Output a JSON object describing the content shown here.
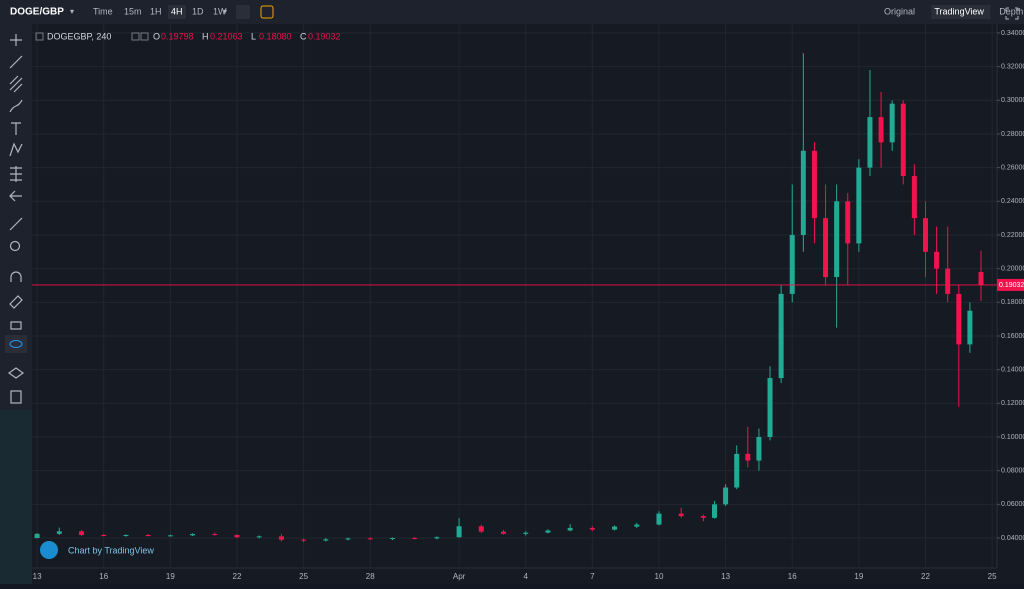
{
  "header": {
    "symbol": "DOGE/GBP",
    "intervals": [
      "Time",
      "15m",
      "1H",
      "4H",
      "1D",
      "1W"
    ],
    "active_interval": "4H",
    "views": [
      "Original",
      "TradingView",
      "Depth"
    ],
    "active_view": "TradingView"
  },
  "legend": {
    "symbol": "DOGEGBP, 240",
    "o_label": "O",
    "o": "0.19798",
    "h_label": "H",
    "h": "0.21063",
    "l_label": "L",
    "l": "0.18080",
    "c_label": "C",
    "c": "0.19032"
  },
  "watermark": "Chart by TradingView",
  "chart_data": {
    "type": "candlestick",
    "up_color": "#22ab94",
    "down_color": "#f0134d",
    "grid": true,
    "xlim": [
      -0.23,
      43.22
    ],
    "xticks": [
      {
        "value": 0,
        "label": "13"
      },
      {
        "value": 3,
        "label": "16"
      },
      {
        "value": 6,
        "label": "19"
      },
      {
        "value": 9,
        "label": "22"
      },
      {
        "value": 12,
        "label": "25"
      },
      {
        "value": 15,
        "label": "28"
      },
      {
        "value": 19,
        "label": "Apr"
      },
      {
        "value": 22,
        "label": "4"
      },
      {
        "value": 25,
        "label": "7"
      },
      {
        "value": 28,
        "label": "10"
      },
      {
        "value": 31,
        "label": "13"
      },
      {
        "value": 34,
        "label": "16"
      },
      {
        "value": 37,
        "label": "19"
      },
      {
        "value": 40,
        "label": "22"
      },
      {
        "value": 43,
        "label": "25"
      }
    ],
    "ylim": [
      0.0222,
      0.3453
    ],
    "yticks": [
      {
        "value": 0.04,
        "label": "0.04000"
      },
      {
        "value": 0.06,
        "label": "0.06000"
      },
      {
        "value": 0.08,
        "label": "0.08000"
      },
      {
        "value": 0.1,
        "label": "0.10000"
      },
      {
        "value": 0.12,
        "label": "0.12000"
      },
      {
        "value": 0.14,
        "label": "0.14000"
      },
      {
        "value": 0.16,
        "label": "0.16000"
      },
      {
        "value": 0.18,
        "label": "0.18000"
      },
      {
        "value": 0.2,
        "label": "0.20000"
      },
      {
        "value": 0.22,
        "label": "0.22000"
      },
      {
        "value": 0.24,
        "label": "0.24000"
      },
      {
        "value": 0.26,
        "label": "0.26000"
      },
      {
        "value": 0.28,
        "label": "0.28000"
      },
      {
        "value": 0.3,
        "label": "0.30000"
      },
      {
        "value": 0.32,
        "label": "0.32000"
      },
      {
        "value": 0.34,
        "label": "0.34000"
      }
    ],
    "last_price": {
      "value": 0.19032,
      "label": "0.19032"
    },
    "x": [
      0,
      1,
      2,
      3,
      4,
      5,
      6,
      7,
      8,
      9,
      10,
      11,
      12,
      13,
      14,
      15,
      16,
      17,
      18,
      19,
      20,
      21,
      22,
      23,
      24,
      25,
      26,
      27,
      28,
      29,
      30,
      30.5,
      31,
      31.5,
      32,
      32.5,
      33,
      33.5,
      34,
      34.5,
      35,
      35.5,
      36,
      36.5,
      37,
      37.5,
      38,
      38.5,
      39,
      39.5,
      40,
      40.5,
      41,
      41.5,
      42,
      42.5
    ],
    "open": [
      0.04,
      0.0425,
      0.044,
      0.0418,
      0.0415,
      0.0418,
      0.0414,
      0.0416,
      0.0424,
      0.0418,
      0.0405,
      0.041,
      0.039,
      0.0385,
      0.0392,
      0.0398,
      0.0395,
      0.04,
      0.0398,
      0.0405,
      0.047,
      0.0438,
      0.0425,
      0.0432,
      0.0445,
      0.046,
      0.045,
      0.0468,
      0.048,
      0.0545,
      0.053,
      0.052,
      0.06,
      0.07,
      0.09,
      0.086,
      0.1,
      0.135,
      0.185,
      0.22,
      0.27,
      0.23,
      0.195,
      0.24,
      0.215,
      0.26,
      0.29,
      0.275,
      0.298,
      0.255,
      0.23,
      0.21,
      0.2,
      0.185,
      0.155,
      0.19798
    ],
    "high": [
      0.0428,
      0.0462,
      0.0448,
      0.0425,
      0.0422,
      0.0424,
      0.042,
      0.0428,
      0.0432,
      0.0422,
      0.0415,
      0.0425,
      0.0398,
      0.04,
      0.0402,
      0.0405,
      0.0403,
      0.0406,
      0.041,
      0.0518,
      0.048,
      0.0448,
      0.044,
      0.0452,
      0.0482,
      0.047,
      0.0475,
      0.049,
      0.056,
      0.058,
      0.054,
      0.062,
      0.072,
      0.095,
      0.106,
      0.105,
      0.142,
      0.19,
      0.25,
      0.328,
      0.275,
      0.25,
      0.25,
      0.245,
      0.265,
      0.318,
      0.305,
      0.3,
      0.3,
      0.262,
      0.24,
      0.225,
      0.225,
      0.19,
      0.18,
      0.21063
    ],
    "low": [
      0.0398,
      0.0418,
      0.0412,
      0.041,
      0.0408,
      0.041,
      0.0409,
      0.0412,
      0.0414,
      0.04,
      0.0398,
      0.038,
      0.0375,
      0.038,
      0.0385,
      0.039,
      0.0388,
      0.0392,
      0.0392,
      0.0402,
      0.043,
      0.042,
      0.0415,
      0.0428,
      0.044,
      0.0442,
      0.0445,
      0.046,
      0.0475,
      0.052,
      0.05,
      0.0515,
      0.059,
      0.069,
      0.082,
      0.08,
      0.098,
      0.132,
      0.18,
      0.21,
      0.215,
      0.19,
      0.165,
      0.19,
      0.21,
      0.255,
      0.26,
      0.27,
      0.25,
      0.22,
      0.195,
      0.185,
      0.18,
      0.118,
      0.15,
      0.1808
    ],
    "close": [
      0.0425,
      0.044,
      0.0418,
      0.0415,
      0.0418,
      0.0414,
      0.0416,
      0.0424,
      0.0418,
      0.0405,
      0.041,
      0.039,
      0.0385,
      0.0392,
      0.0398,
      0.0395,
      0.04,
      0.0398,
      0.0405,
      0.047,
      0.0438,
      0.0425,
      0.0432,
      0.0445,
      0.046,
      0.045,
      0.0468,
      0.048,
      0.0545,
      0.053,
      0.052,
      0.06,
      0.07,
      0.09,
      0.086,
      0.1,
      0.135,
      0.185,
      0.22,
      0.27,
      0.23,
      0.195,
      0.24,
      0.215,
      0.26,
      0.29,
      0.275,
      0.298,
      0.255,
      0.23,
      0.21,
      0.2,
      0.185,
      0.155,
      0.175,
      0.19032
    ]
  }
}
